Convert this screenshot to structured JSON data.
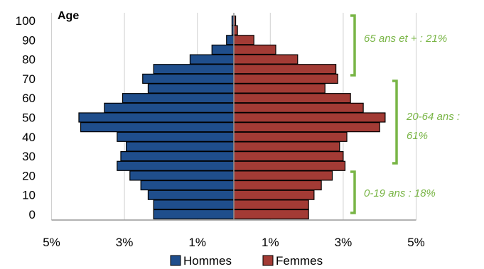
{
  "chart_data": {
    "type": "bar",
    "orientation": "horizontal-population-pyramid",
    "ylabel": "Age",
    "y_tick_labels": [
      "0",
      "10",
      "20",
      "30",
      "40",
      "50",
      "60",
      "70",
      "80",
      "90",
      "100"
    ],
    "x_tick_labels": [
      "5%",
      "3%",
      "1%",
      "1%",
      "3%",
      "5%"
    ],
    "xlim": [
      -5,
      5
    ],
    "ylim": [
      0,
      100
    ],
    "age_groups": [
      0,
      5,
      10,
      15,
      20,
      25,
      30,
      35,
      40,
      45,
      50,
      55,
      60,
      65,
      70,
      75,
      80,
      85,
      90,
      95,
      100
    ],
    "series": [
      {
        "name": "Hommes",
        "color": "#1f4e8c",
        "values": [
          2.2,
          2.2,
          2.35,
          2.55,
          2.85,
          3.2,
          3.1,
          2.95,
          3.2,
          4.2,
          4.25,
          3.55,
          3.05,
          2.35,
          2.5,
          2.2,
          1.2,
          0.6,
          0.2,
          0.05,
          0.05
        ]
      },
      {
        "name": "Femmes",
        "color": "#a33b35",
        "values": [
          2.05,
          2.05,
          2.2,
          2.4,
          2.7,
          3.05,
          3.0,
          2.9,
          3.1,
          4.0,
          4.15,
          3.55,
          3.2,
          2.5,
          2.85,
          2.8,
          1.75,
          1.15,
          0.55,
          0.1,
          0.05
        ]
      }
    ],
    "annotations": [
      {
        "text": "65 ans et + : 21%",
        "range": [
          65,
          100
        ]
      },
      {
        "text": "20-64 ans : 61%",
        "line1": "20-64 ans :",
        "line2": "61%",
        "range": [
          20,
          64
        ]
      },
      {
        "text": "0-19 ans : 18%",
        "range": [
          0,
          19
        ]
      }
    ],
    "annotation_color": "#79b546",
    "grid": true,
    "legend": "bottom"
  }
}
